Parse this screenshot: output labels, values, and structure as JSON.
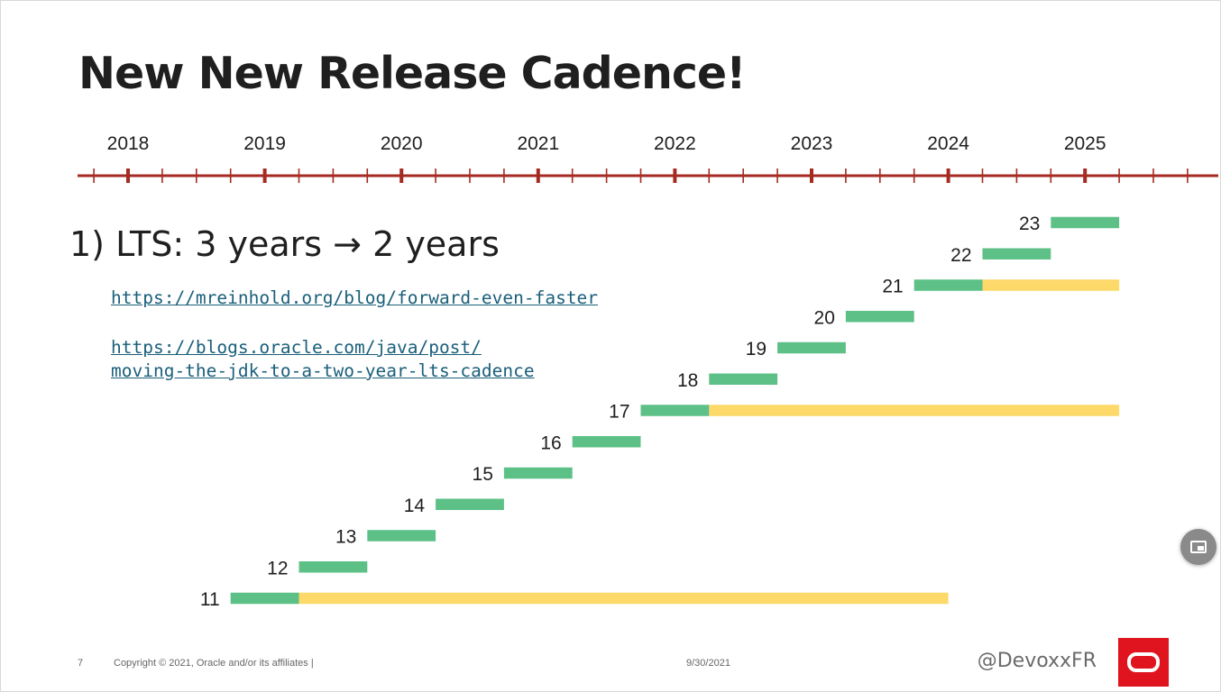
{
  "slide": {
    "title": "New New Release Cadence!",
    "heading": "1)  LTS: 3 years → 2 years",
    "links": [
      "https://mreinhold.org/blog/forward-even-faster",
      "https://blogs.oracle.com/java/post/",
      "moving-the-jdk-to-a-two-year-lts-cadence"
    ],
    "footer": {
      "page_number": "7",
      "copyright": "Copyright © 2021, Oracle and/or its affiliates  |",
      "date": "9/30/2021",
      "handle": "@DevoxxFR"
    },
    "colors": {
      "axis": "#a52a22",
      "release": "#5cc087",
      "lts_support": "#fcd968",
      "logo": "#e0141e"
    },
    "icons": [
      "oracle-logo-icon",
      "picture-in-picture-icon"
    ]
  },
  "chart_data": {
    "type": "gantt",
    "x_axis": {
      "ticks": [
        2018,
        2019,
        2020,
        2021,
        2022,
        2023,
        2024,
        2025
      ],
      "range": [
        2018.0,
        2025.0
      ],
      "minor_tick_step": 0.25
    },
    "series": [
      {
        "label": "11",
        "release_start": 2018.75,
        "release_end": 2019.25,
        "lts_end": 2024.0
      },
      {
        "label": "12",
        "release_start": 2019.25,
        "release_end": 2019.75
      },
      {
        "label": "13",
        "release_start": 2019.75,
        "release_end": 2020.25
      },
      {
        "label": "14",
        "release_start": 2020.25,
        "release_end": 2020.75
      },
      {
        "label": "15",
        "release_start": 2020.75,
        "release_end": 2021.25
      },
      {
        "label": "16",
        "release_start": 2021.25,
        "release_end": 2021.75
      },
      {
        "label": "17",
        "release_start": 2021.75,
        "release_end": 2022.25,
        "lts_end": 2025.25
      },
      {
        "label": "18",
        "release_start": 2022.25,
        "release_end": 2022.75
      },
      {
        "label": "19",
        "release_start": 2022.75,
        "release_end": 2023.25
      },
      {
        "label": "20",
        "release_start": 2023.25,
        "release_end": 2023.75
      },
      {
        "label": "21",
        "release_start": 2023.75,
        "release_end": 2024.25,
        "lts_end": 2025.25
      },
      {
        "label": "22",
        "release_start": 2024.25,
        "release_end": 2024.75
      },
      {
        "label": "23",
        "release_start": 2024.75,
        "release_end": 2025.25
      }
    ]
  }
}
